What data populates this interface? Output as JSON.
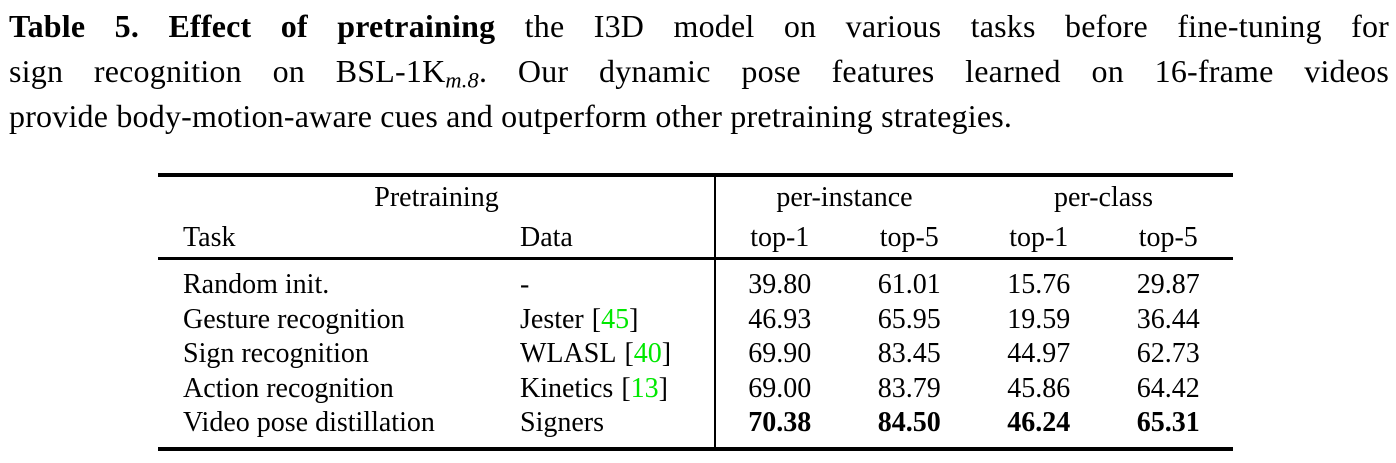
{
  "page": {
    "background": "#FFFFFF",
    "text_color": "#000000"
  },
  "caption": {
    "line1_bold": "Table 5. Effect of pretraining",
    "line1_rest": " the I3D model on various tasks before fine-tuning for",
    "line2_pre": "sign recognition on BSL-1K",
    "line2_sub": "m.8",
    "line2_post": ". Our dynamic pose features learned on 16-frame videos",
    "line3": "provide body-motion-aware cues and outperform other pretraining strategies."
  },
  "table": {
    "group_headers": {
      "pretraining": "Pretraining",
      "per_instance": "per-instance",
      "per_class": "per-class"
    },
    "column_headers": {
      "task": "Task",
      "data": "Data",
      "pi_top1": "top-1",
      "pi_top5": "top-5",
      "pc_top1": "top-1",
      "pc_top5": "top-5"
    },
    "rows": [
      {
        "task": "Random init.",
        "data": "-",
        "pi_top1": "39.80",
        "pi_top5": "61.01",
        "pc_top1": "15.76",
        "pc_top5": "29.87"
      },
      {
        "task": "Gesture recognition",
        "data": "Jester",
        "cite_open": "[",
        "cite": "45",
        "cite_close": "]",
        "pi_top1": "46.93",
        "pi_top5": "65.95",
        "pc_top1": "19.59",
        "pc_top5": "36.44"
      },
      {
        "task": "Sign recognition",
        "data": "WLASL",
        "cite_open": "[",
        "cite": "40",
        "cite_close": "]",
        "pi_top1": "69.90",
        "pi_top5": "83.45",
        "pc_top1": "44.97",
        "pc_top5": "62.73"
      },
      {
        "task": "Action recognition",
        "data": "Kinetics",
        "cite_open": "[",
        "cite": "13",
        "cite_close": "]",
        "pi_top1": "69.00",
        "pi_top5": "83.79",
        "pc_top1": "45.86",
        "pc_top5": "64.42"
      },
      {
        "task": "Video pose distillation",
        "data": "Signers",
        "pi_top1": "70.38",
        "pi_top5": "84.50",
        "pc_top1": "46.24",
        "pc_top5": "65.31"
      }
    ],
    "colors": {
      "citation_green": "#00E800",
      "rule_black": "#000000"
    }
  }
}
